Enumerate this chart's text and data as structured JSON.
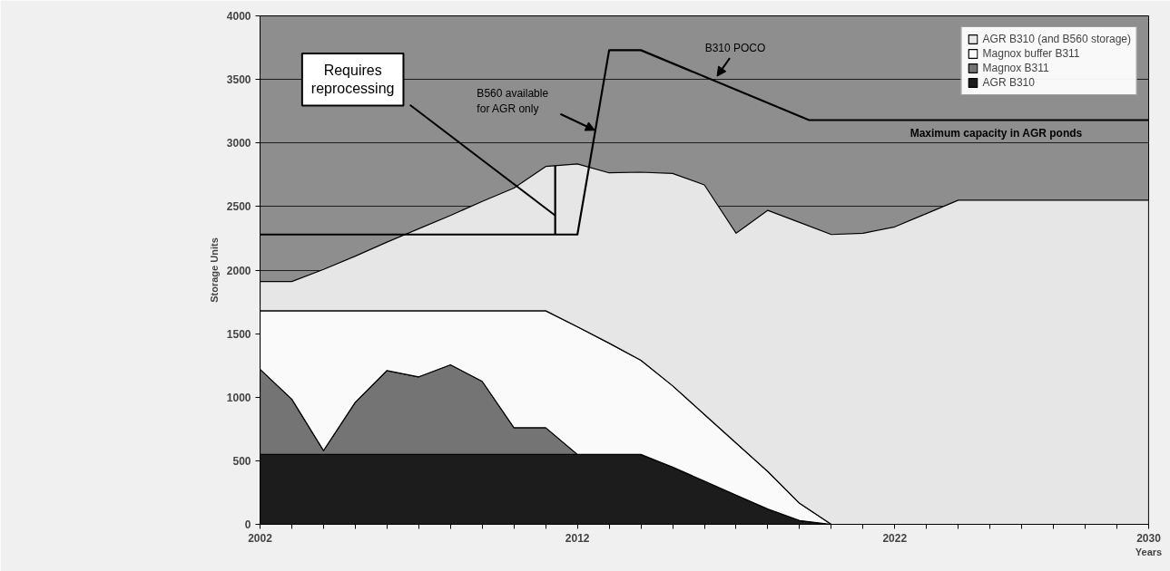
{
  "chart_data": {
    "type": "area",
    "stacked": true,
    "xlabel": "Years",
    "ylabel": "Storage Units",
    "x": [
      2002,
      2003,
      2004,
      2005,
      2006,
      2007,
      2008,
      2009,
      2010,
      2011,
      2012,
      2013,
      2014,
      2015,
      2016,
      2017,
      2018,
      2019,
      2020,
      2021,
      2022,
      2023,
      2024,
      2025,
      2026,
      2027,
      2028,
      2029,
      2030
    ],
    "series": [
      {
        "name": "AGR B310",
        "color": "#1c1c1c",
        "values": [
          550,
          550,
          550,
          550,
          550,
          550,
          550,
          550,
          550,
          550,
          550,
          550,
          550,
          450,
          340,
          230,
          120,
          30,
          0,
          0,
          0,
          0,
          0,
          0,
          0,
          0,
          0,
          0,
          0
        ]
      },
      {
        "name": "Magnox B311",
        "color": "#747474",
        "values": [
          670,
          435,
          30,
          410,
          660,
          610,
          705,
          575,
          210,
          210,
          0,
          0,
          0,
          0,
          0,
          0,
          0,
          0,
          0,
          0,
          0,
          0,
          0,
          0,
          0,
          0,
          0,
          0,
          0
        ]
      },
      {
        "name": "Magnox buffer B311",
        "color": "#fafafa",
        "values": [
          460,
          695,
          1100,
          720,
          470,
          520,
          425,
          555,
          920,
          920,
          1005,
          875,
          740,
          640,
          525,
          410,
          295,
          135,
          0,
          0,
          0,
          0,
          0,
          0,
          0,
          0,
          0,
          0,
          0
        ]
      },
      {
        "name": "AGR B310 (and B560 storage)",
        "color": "#e6e6e6",
        "values": [
          230,
          230,
          325,
          430,
          540,
          645,
          750,
          860,
          965,
          1135,
          1280,
          1340,
          1480,
          1670,
          1805,
          1650,
          2055,
          2210,
          2280,
          2290,
          2340,
          2445,
          2550,
          2550,
          2550,
          2550,
          2550,
          2550,
          2550
        ]
      },
      {
        "type": "line",
        "color": "#000000",
        "x": [
          2002,
          2012,
          2013,
          2014,
          2019.3,
          2030
        ],
        "values": [
          2280,
          2280,
          3730,
          3730,
          3180,
          3180
        ]
      },
      {
        "type": "line",
        "color": "#000000",
        "x": [
          2011.3,
          2011.3
        ],
        "values": [
          2280,
          2820
        ]
      }
    ],
    "xlim": [
      2002,
      2030
    ],
    "xticks": [
      2002,
      {
        "value": 2003,
        "label": null
      },
      {
        "value": 2004,
        "label": null
      },
      {
        "value": 2005,
        "label": null
      },
      {
        "value": 2006,
        "label": null
      },
      {
        "value": 2007,
        "label": null
      },
      {
        "value": 2008,
        "label": null
      },
      {
        "value": 2009,
        "label": null
      },
      {
        "value": 2010,
        "label": null
      },
      {
        "value": 2011,
        "label": null
      },
      2012,
      {
        "value": 2013,
        "label": null
      },
      {
        "value": 2014,
        "label": null
      },
      {
        "value": 2015,
        "label": null
      },
      {
        "value": 2016,
        "label": null
      },
      {
        "value": 2017,
        "label": null
      },
      {
        "value": 2018,
        "label": null
      },
      {
        "value": 2019,
        "label": null
      },
      {
        "value": 2020,
        "label": null
      },
      {
        "value": 2021,
        "label": null
      },
      2022,
      {
        "value": 2023,
        "label": null
      },
      {
        "value": 2024,
        "label": null
      },
      {
        "value": 2025,
        "label": null
      },
      {
        "value": 2026,
        "label": null
      },
      {
        "value": 2027,
        "label": null
      },
      {
        "value": 2028,
        "label": null
      },
      {
        "value": 2029,
        "label": null
      },
      2030
    ],
    "ylim": [
      0,
      4000
    ],
    "yticks": [
      0,
      500,
      1000,
      1500,
      2000,
      2500,
      3000,
      3500,
      4000
    ],
    "grid": "y",
    "legend": "top right",
    "annotations": [
      {
        "text": "B560 available\nfor AGR only",
        "x": 2012.55,
        "y": 3100
      },
      {
        "text": "B310 POCO",
        "x": 2016.4,
        "y": 3525
      },
      {
        "text": "Maximum capacity in AGR ponds",
        "x": 2025.2,
        "y": 3180
      },
      {
        "text": "Requires\nreprocessing",
        "x": 2011.3,
        "y": 2430
      }
    ]
  }
}
